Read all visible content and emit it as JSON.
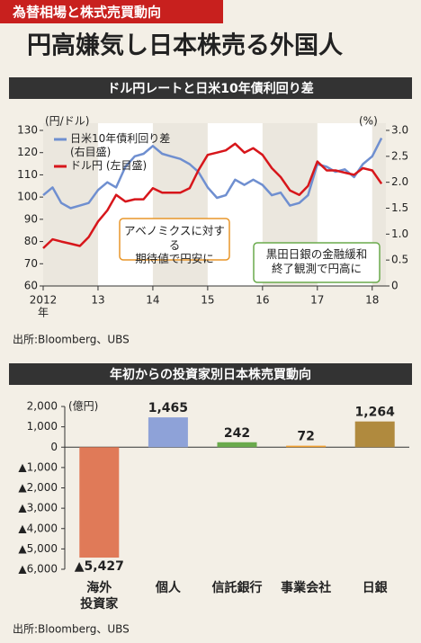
{
  "header": {
    "tag": "為替相場と株式売買動向",
    "title": "円高嫌気し日本株売る外国人"
  },
  "chart_data": [
    {
      "type": "line",
      "title": "ドル円レートと日米10年債利回り差",
      "ylabel": "(円/ドル)",
      "y2label": "(%)",
      "xlabel": "年",
      "x": [
        2012,
        2012.17,
        2012.33,
        2012.5,
        2012.67,
        2012.83,
        2013,
        2013.17,
        2013.33,
        2013.5,
        2013.67,
        2013.83,
        2014,
        2014.17,
        2014.33,
        2014.5,
        2014.67,
        2014.83,
        2015,
        2015.17,
        2015.33,
        2015.5,
        2015.67,
        2015.83,
        2016,
        2016.17,
        2016.33,
        2016.5,
        2016.67,
        2016.83,
        2017,
        2017.17,
        2017.33,
        2017.5,
        2017.67,
        2017.83,
        2018,
        2018.17
      ],
      "series": [
        {
          "name": "日米10年債利回り差\n(右目盛)",
          "color": "#6f8fd0",
          "axis": "y2",
          "values": [
            1.75,
            1.9,
            1.6,
            1.5,
            1.55,
            1.6,
            1.85,
            2.0,
            1.9,
            2.3,
            2.5,
            2.55,
            2.7,
            2.55,
            2.5,
            2.45,
            2.35,
            2.2,
            1.9,
            1.7,
            1.75,
            2.05,
            1.95,
            2.05,
            1.95,
            1.75,
            1.8,
            1.55,
            1.6,
            1.75,
            2.35,
            2.3,
            2.2,
            2.25,
            2.1,
            2.35,
            2.5,
            2.85
          ]
        },
        {
          "name": "ドル円 (左目盛)",
          "color": "#d7161b",
          "values": [
            77,
            81,
            80,
            79,
            78,
            82,
            89,
            94,
            101,
            98,
            99,
            99,
            104,
            102,
            102,
            102,
            104,
            112,
            119,
            120,
            121,
            124,
            120,
            122,
            119,
            113,
            109,
            103,
            101,
            105,
            116,
            112,
            112,
            111,
            110,
            113,
            112,
            106
          ]
        }
      ],
      "xlim": [
        2012,
        2018.25
      ],
      "xticks": [
        {
          "value": 2012,
          "label": "2012"
        },
        {
          "value": 2013,
          "label": "13"
        },
        {
          "value": 2014,
          "label": "14"
        },
        {
          "value": 2015,
          "label": "15"
        },
        {
          "value": 2016,
          "label": "16"
        },
        {
          "value": 2017,
          "label": "17"
        },
        {
          "value": 2018,
          "label": "18"
        }
      ],
      "ylim": [
        60,
        130
      ],
      "yticks": [
        60,
        70,
        80,
        90,
        100,
        110,
        120,
        130
      ],
      "y2lim": [
        0,
        3
      ],
      "y2ticks": [
        0,
        0.5,
        {
          "value": 1,
          "label": "1.0"
        },
        1.5,
        {
          "value": 2,
          "label": "2.0"
        },
        2.5,
        {
          "value": 3,
          "label": "3.0"
        }
      ],
      "annotations": [
        "アベノミクスに対する\n期待値で円安に",
        "黒田日銀の金融緩和\n終了観測で円高に"
      ],
      "source": "出所:Bloomberg、UBS"
    },
    {
      "type": "bar",
      "title": "年初からの投資家別日本株売買動向",
      "ylabel": "(億円)",
      "categories": [
        "海外\n投資家",
        "個人",
        "信託銀行",
        "事業会社",
        "日銀"
      ],
      "values": [
        -5427,
        1465,
        242,
        72,
        1264
      ],
      "value_labels": [
        "▲5,427",
        "1,465",
        "242",
        "72",
        "1,264"
      ],
      "colors": [
        "#e07a58",
        "#8ea2d8",
        "#6aaa4c",
        "#f0a030",
        "#b08a3e"
      ],
      "ylim": [
        -6000,
        2000
      ],
      "yticks": [
        {
          "value": -6000,
          "label": "▲6,000"
        },
        {
          "value": -5000,
          "label": "▲5,000"
        },
        {
          "value": -4000,
          "label": "▲4,000"
        },
        {
          "value": -3000,
          "label": "▲3,000"
        },
        {
          "value": -2000,
          "label": "▲2,000"
        },
        {
          "value": -1000,
          "label": "▲1,000"
        },
        0,
        {
          "value": 1000,
          "label": "1,000"
        },
        {
          "value": 2000,
          "label": "2,000"
        }
      ],
      "source": "出所:Bloomberg、UBS"
    }
  ]
}
